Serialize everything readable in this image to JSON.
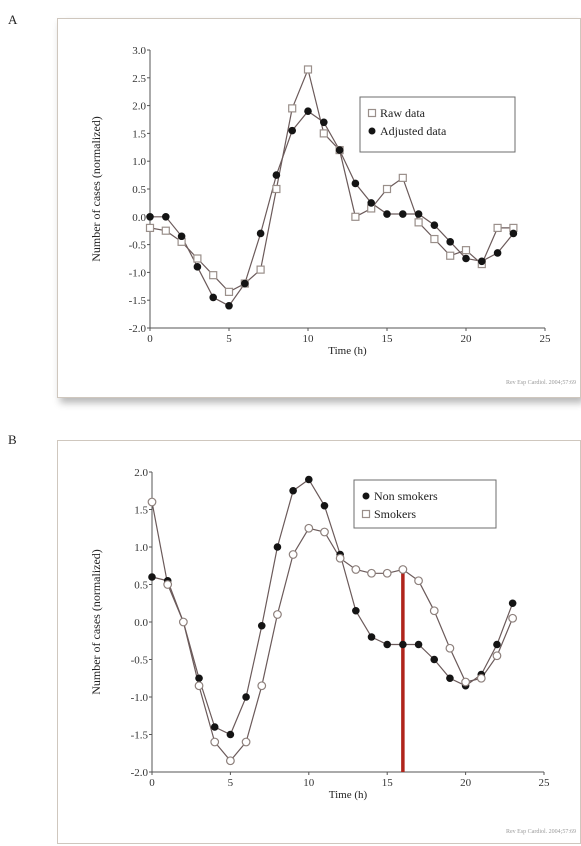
{
  "figure": {
    "panel_labels": [
      "A",
      "B"
    ]
  },
  "chart_data": [
    {
      "type": "line",
      "panel": "A",
      "xlabel": "Time (h)",
      "ylabel": "Number of cases (normalized)",
      "xlim": [
        0,
        25
      ],
      "ylim": [
        -2.0,
        3.0
      ],
      "xticks": [
        0,
        5,
        10,
        15,
        20,
        25
      ],
      "yticks": [
        "3.0",
        "2.5",
        "2.0",
        "1.5",
        "1.0",
        "0.5",
        "0.0",
        "-0.5",
        "-1.0",
        "-1.5",
        "-2.0"
      ],
      "legend_position": "top-right",
      "credit": "Rev Esp Cardiol. 2004;57:69",
      "x": [
        0,
        1,
        2,
        3,
        4,
        5,
        6,
        7,
        8,
        9,
        10,
        11,
        12,
        13,
        14,
        15,
        16,
        17,
        18,
        19,
        20,
        21,
        22,
        23
      ],
      "series": [
        {
          "name": "Raw data",
          "marker": "open-square",
          "values": [
            -0.2,
            -0.25,
            -0.45,
            -0.75,
            -1.05,
            -1.35,
            -1.2,
            -0.95,
            0.5,
            1.95,
            2.65,
            1.5,
            1.2,
            0.0,
            0.15,
            0.5,
            0.7,
            -0.1,
            -0.4,
            -0.7,
            -0.6,
            -0.85,
            -0.2,
            -0.2
          ]
        },
        {
          "name": "Adjusted data",
          "marker": "filled-circle",
          "values": [
            0.0,
            0.0,
            -0.35,
            -0.9,
            -1.45,
            -1.6,
            -1.2,
            -0.3,
            0.75,
            1.55,
            1.9,
            1.7,
            1.2,
            0.6,
            0.25,
            0.05,
            0.05,
            0.05,
            -0.15,
            -0.45,
            -0.75,
            -0.8,
            -0.65,
            -0.3
          ]
        }
      ]
    },
    {
      "type": "line",
      "panel": "B",
      "xlabel": "Time (h)",
      "ylabel": "Number of cases (normalized)",
      "xlim": [
        0,
        25
      ],
      "ylim": [
        -2.0,
        2.0
      ],
      "xticks": [
        0,
        5,
        10,
        15,
        20,
        25
      ],
      "yticks": [
        "2.0",
        "1.5",
        "1.0",
        "0.5",
        "0.0",
        "-0.5",
        "-1.0",
        "-1.5",
        "-2.0"
      ],
      "legend_position": "top-right",
      "credit": "Rev Esp Cardiol. 2004;57:69",
      "vertical_marker": {
        "x": 16,
        "color": "#b0251c"
      },
      "x": [
        0,
        1,
        2,
        3,
        4,
        5,
        6,
        7,
        8,
        9,
        10,
        11,
        12,
        13,
        14,
        15,
        16,
        17,
        18,
        19,
        20,
        21,
        22,
        23
      ],
      "series": [
        {
          "name": "Non smokers",
          "marker": "filled-circle",
          "values": [
            0.6,
            0.55,
            0.0,
            -0.75,
            -1.4,
            -1.5,
            -1.0,
            -0.05,
            1.0,
            1.75,
            1.9,
            1.55,
            0.9,
            0.15,
            -0.2,
            -0.3,
            -0.3,
            -0.3,
            -0.5,
            -0.75,
            -0.85,
            -0.7,
            -0.3,
            0.25
          ]
        },
        {
          "name": "Smokers",
          "marker": "open-circle",
          "values": [
            1.6,
            0.5,
            0.0,
            -0.85,
            -1.6,
            -1.85,
            -1.6,
            -0.85,
            0.1,
            0.9,
            1.25,
            1.2,
            0.85,
            0.7,
            0.65,
            0.65,
            0.7,
            0.55,
            0.15,
            -0.35,
            -0.8,
            -0.75,
            -0.45,
            0.05
          ]
        }
      ]
    }
  ]
}
